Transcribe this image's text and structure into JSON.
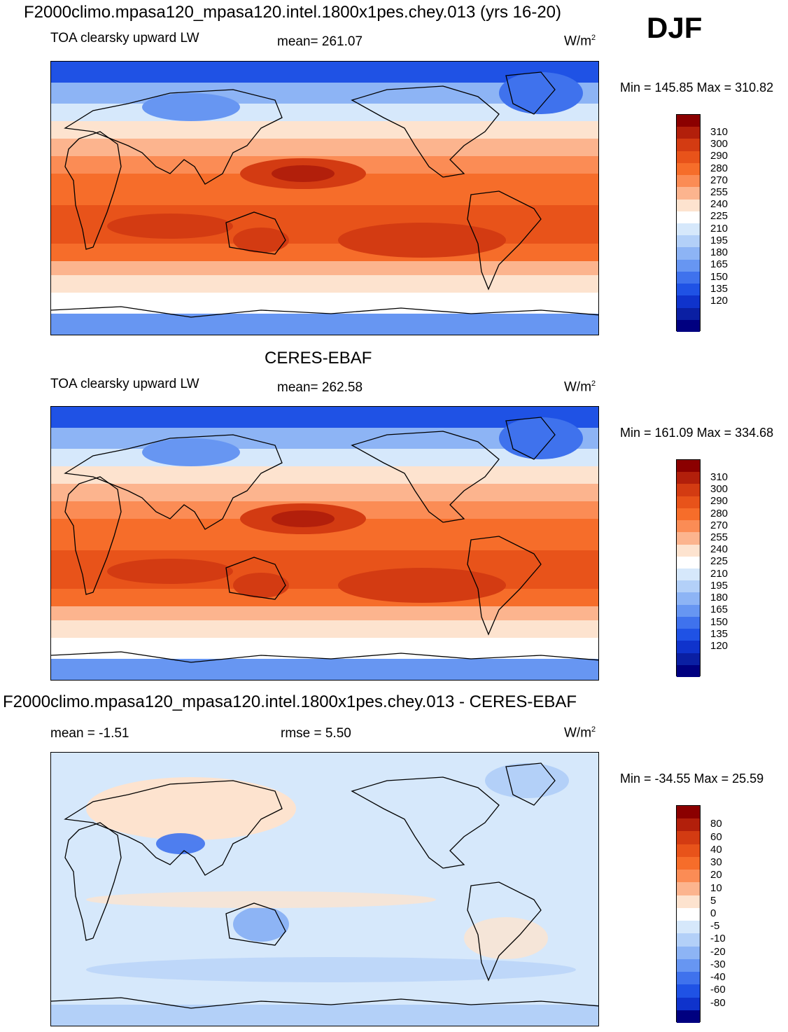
{
  "header": {
    "title": "F2000climo.mpasa120_mpasa120.intel.1800x1pes.chey.013 (yrs 16-20)",
    "season": "DJF"
  },
  "panels": [
    {
      "id": "model",
      "subtitle": "",
      "variable": "TOA clearsky upward LW",
      "mean": "mean= 261.07",
      "units_base": "W/m",
      "units_exp": "2",
      "minmax": "Min = 145.85 Max = 310.82",
      "colorbar": {
        "colors": [
          "#8b0000",
          "#b21f0b",
          "#d33b12",
          "#e8531a",
          "#f66d2a",
          "#fb8c55",
          "#fcb48e",
          "#fde3cf",
          "#ffffff",
          "#d6e8fb",
          "#b3d0f8",
          "#8db4f5",
          "#6796f2",
          "#3f72ed",
          "#1f52e5",
          "#0f33cc",
          "#0a1fa3",
          "#000080"
        ],
        "labels": [
          "310",
          "300",
          "290",
          "280",
          "270",
          "255",
          "240",
          "225",
          "210",
          "195",
          "180",
          "165",
          "150",
          "135",
          "120"
        ]
      }
    },
    {
      "id": "obs",
      "subtitle": "CERES-EBAF",
      "variable": "TOA clearsky upward LW",
      "mean": "mean= 262.58",
      "units_base": "W/m",
      "units_exp": "2",
      "minmax": "Min = 161.09 Max = 334.68",
      "colorbar": {
        "colors": [
          "#8b0000",
          "#b21f0b",
          "#d33b12",
          "#e8531a",
          "#f66d2a",
          "#fb8c55",
          "#fcb48e",
          "#fde3cf",
          "#ffffff",
          "#d6e8fb",
          "#b3d0f8",
          "#8db4f5",
          "#6796f2",
          "#3f72ed",
          "#1f52e5",
          "#0f33cc",
          "#0a1fa3",
          "#000080"
        ],
        "labels": [
          "310",
          "300",
          "290",
          "280",
          "270",
          "255",
          "240",
          "225",
          "210",
          "195",
          "180",
          "165",
          "150",
          "135",
          "120"
        ]
      }
    },
    {
      "id": "diff",
      "subtitle": "F2000climo.mpasa120_mpasa120.intel.1800x1pes.chey.013 - CERES-EBAF",
      "variable": "mean =  -1.51",
      "mean": "rmse =   5.50",
      "units_base": "W/m",
      "units_exp": "2",
      "minmax": "Min = -34.55 Max =  25.59",
      "colorbar": {
        "colors": [
          "#8b0000",
          "#b21f0b",
          "#d33b12",
          "#e8531a",
          "#f66d2a",
          "#fb8c55",
          "#fcb48e",
          "#fde3cf",
          "#ffffff",
          "#d6e8fb",
          "#b3d0f8",
          "#8db4f5",
          "#6796f2",
          "#3f72ed",
          "#1f52e5",
          "#0f33cc",
          "#000080"
        ],
        "labels": [
          "80",
          "60",
          "40",
          "30",
          "20",
          "10",
          "5",
          "0",
          "-5",
          "-10",
          "-20",
          "-30",
          "-40",
          "-60",
          "-80"
        ]
      }
    }
  ]
}
